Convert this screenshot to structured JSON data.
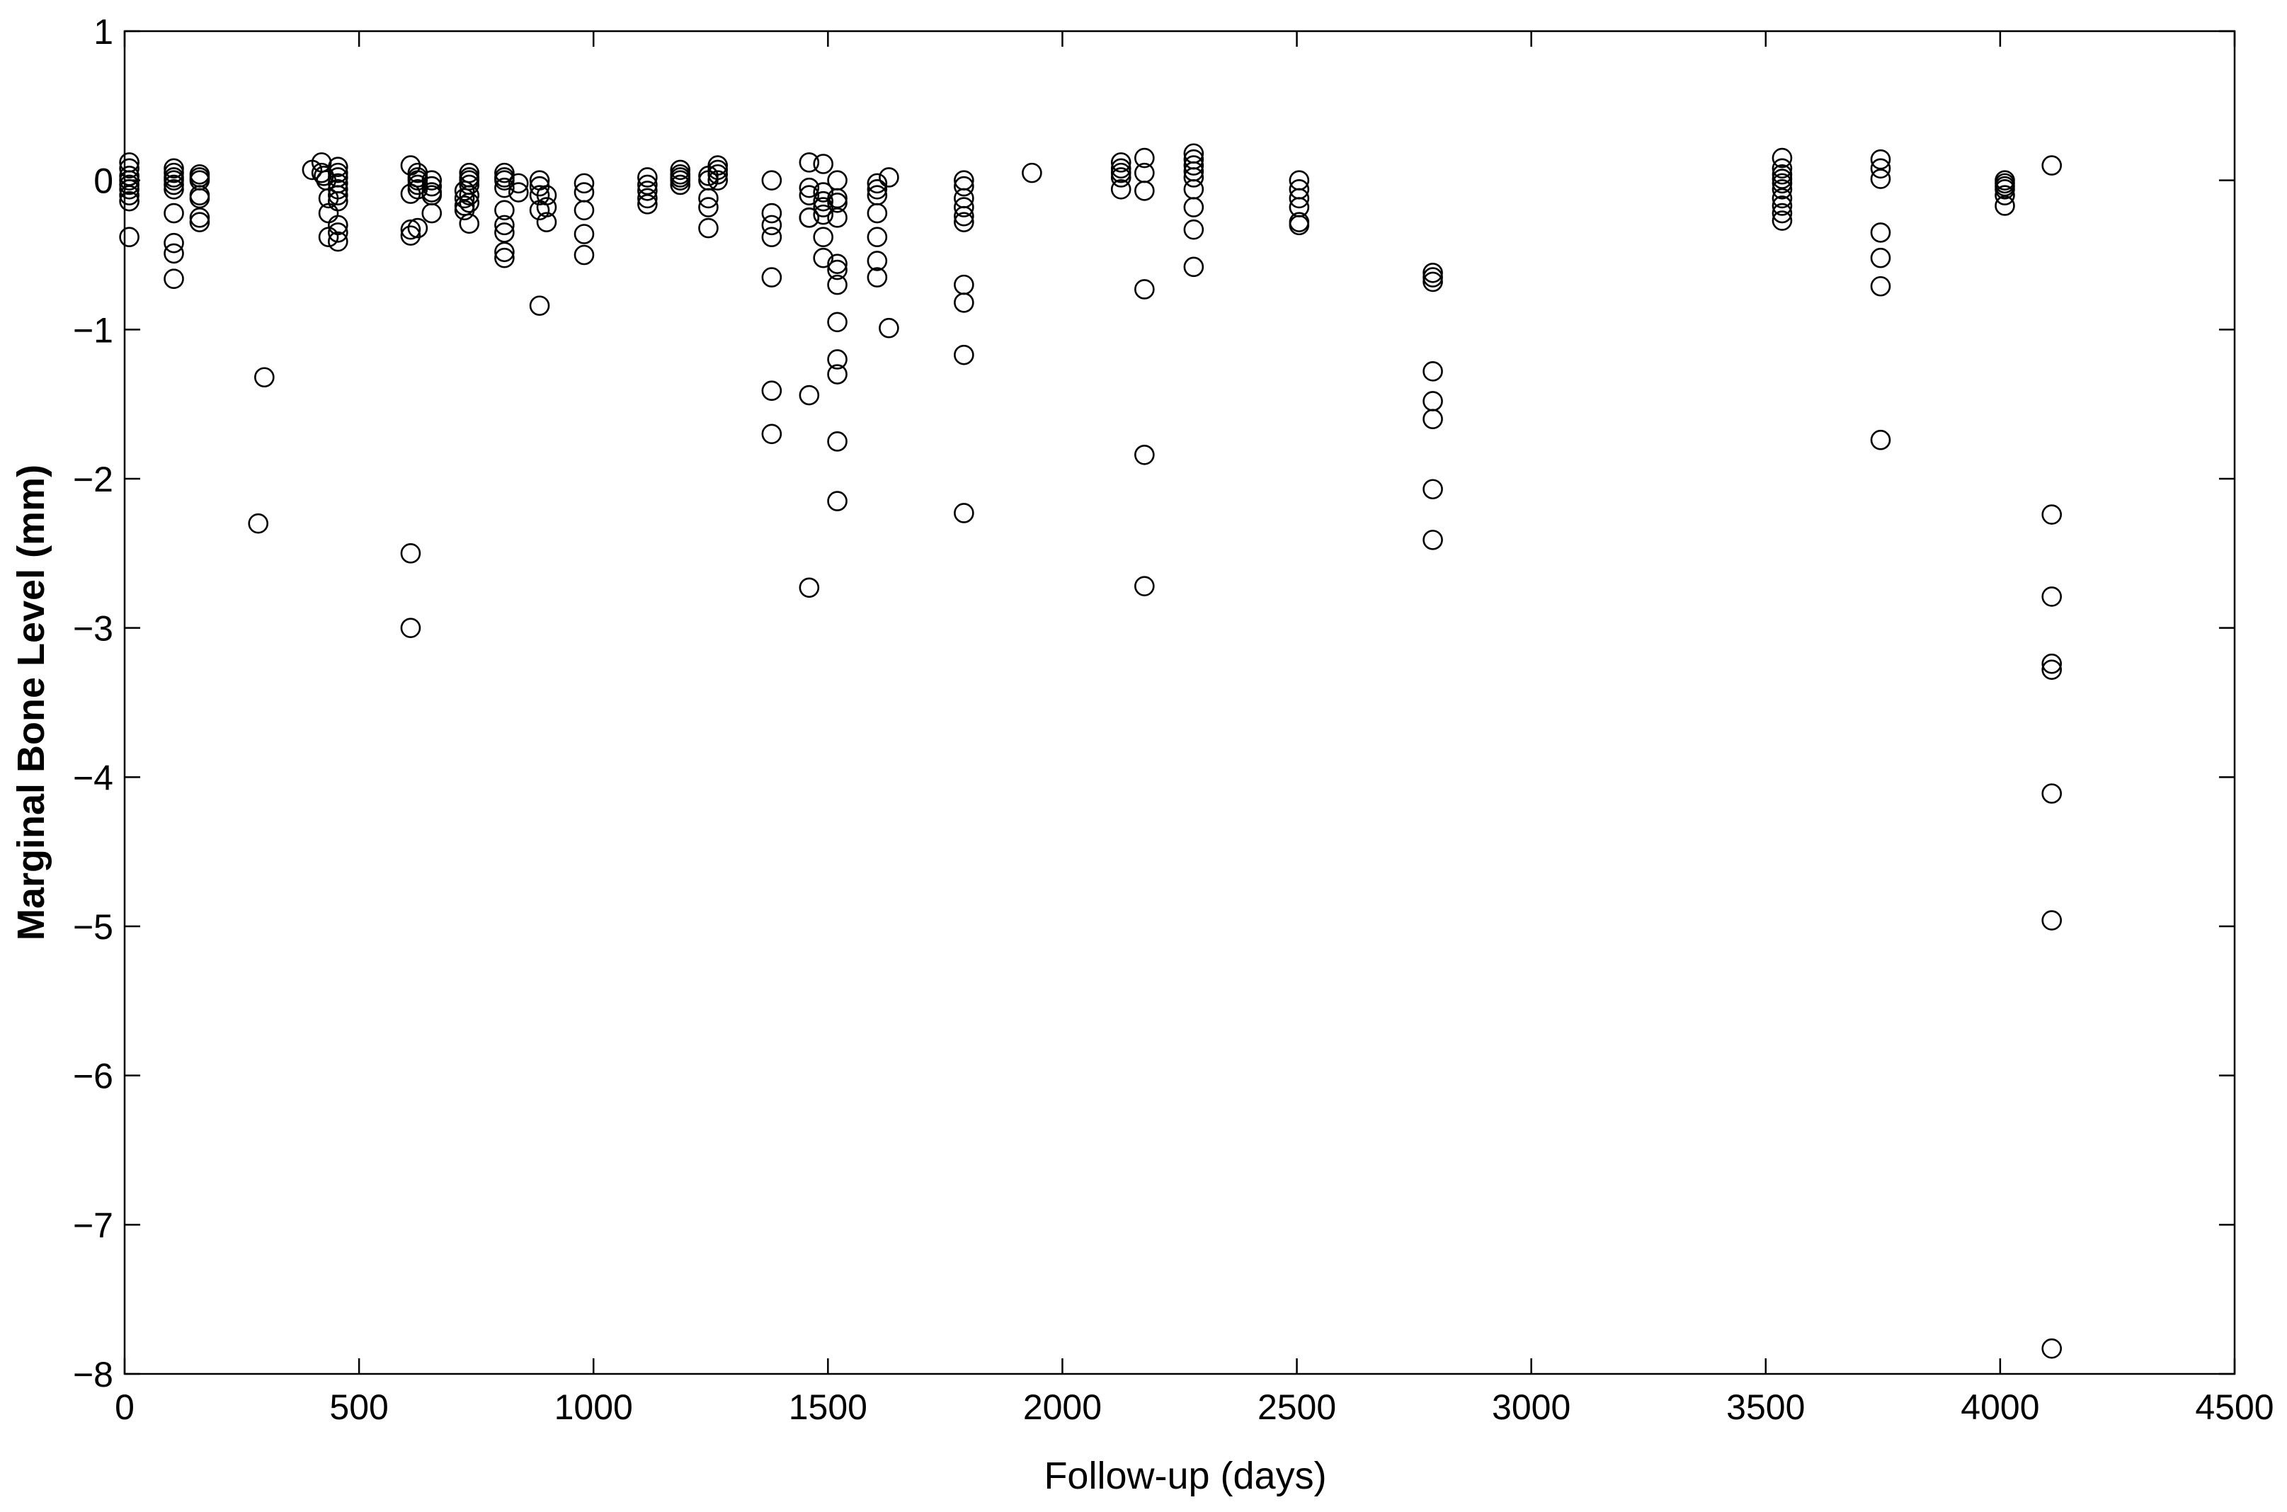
{
  "chart_data": {
    "type": "scatter",
    "title": "",
    "xlabel": "Follow-up (days)",
    "ylabel": "Marginal Bone Level (mm)",
    "xlim": [
      0,
      4500
    ],
    "ylim": [
      -8,
      1
    ],
    "xticks": [
      0,
      500,
      1000,
      1500,
      2000,
      2500,
      3000,
      3500,
      4000,
      4500
    ],
    "yticks": [
      1,
      0,
      -1,
      -2,
      -3,
      -4,
      -5,
      -6,
      -7,
      -8
    ],
    "xtick_labels": [
      "0",
      "500",
      "1000",
      "1500",
      "2000",
      "2500",
      "3000",
      "3500",
      "4000",
      "4500"
    ],
    "ytick_labels": [
      "1",
      "0",
      "−1",
      "−2",
      "−3",
      "−4",
      "−5",
      "−6",
      "−7",
      "−8"
    ],
    "grid": false,
    "marker": "open-circle",
    "color": "#000000",
    "points": [
      [
        10,
        0.12
      ],
      [
        10,
        0.08
      ],
      [
        10,
        0.03
      ],
      [
        10,
        0
      ],
      [
        10,
        -0.03
      ],
      [
        10,
        -0.06
      ],
      [
        10,
        -0.1
      ],
      [
        10,
        -0.14
      ],
      [
        10,
        -0.38
      ],
      [
        105,
        0.08
      ],
      [
        105,
        0.05
      ],
      [
        105,
        0.02
      ],
      [
        105,
        0
      ],
      [
        105,
        -0.03
      ],
      [
        105,
        -0.06
      ],
      [
        105,
        -0.22
      ],
      [
        105,
        -0.42
      ],
      [
        105,
        -0.49
      ],
      [
        105,
        -0.66
      ],
      [
        160,
        0.04
      ],
      [
        160,
        0.02
      ],
      [
        160,
        0
      ],
      [
        160,
        -0.1
      ],
      [
        160,
        -0.12
      ],
      [
        160,
        -0.25
      ],
      [
        160,
        -0.28
      ],
      [
        285,
        -2.3
      ],
      [
        298,
        -1.32
      ],
      [
        400,
        0.07
      ],
      [
        420,
        0.12
      ],
      [
        420,
        0.05
      ],
      [
        425,
        0.03
      ],
      [
        430,
        0
      ],
      [
        435,
        -0.12
      ],
      [
        435,
        -0.22
      ],
      [
        435,
        -0.38
      ],
      [
        455,
        0.09
      ],
      [
        455,
        0.05
      ],
      [
        455,
        0.02
      ],
      [
        455,
        -0.02
      ],
      [
        455,
        -0.06
      ],
      [
        455,
        -0.1
      ],
      [
        455,
        -0.14
      ],
      [
        455,
        -0.3
      ],
      [
        455,
        -0.35
      ],
      [
        455,
        -0.41
      ],
      [
        610,
        0.1
      ],
      [
        610,
        -0.09
      ],
      [
        610,
        -0.33
      ],
      [
        610,
        -0.37
      ],
      [
        610,
        -2.5
      ],
      [
        610,
        -3
      ],
      [
        625,
        0.05
      ],
      [
        625,
        0.02
      ],
      [
        625,
        0
      ],
      [
        625,
        -0.03
      ],
      [
        625,
        -0.06
      ],
      [
        625,
        -0.32
      ],
      [
        655,
        0
      ],
      [
        655,
        -0.04
      ],
      [
        655,
        -0.08
      ],
      [
        655,
        -0.1
      ],
      [
        655,
        -0.22
      ],
      [
        725,
        -0.07
      ],
      [
        725,
        -0.12
      ],
      [
        725,
        -0.17
      ],
      [
        725,
        -0.2
      ],
      [
        735,
        0.05
      ],
      [
        735,
        0.02
      ],
      [
        735,
        0
      ],
      [
        735,
        -0.03
      ],
      [
        735,
        -0.1
      ],
      [
        735,
        -0.15
      ],
      [
        735,
        -0.29
      ],
      [
        810,
        0.05
      ],
      [
        810,
        0.02
      ],
      [
        810,
        0
      ],
      [
        810,
        -0.05
      ],
      [
        810,
        -0.2
      ],
      [
        810,
        -0.3
      ],
      [
        810,
        -0.35
      ],
      [
        810,
        -0.48
      ],
      [
        810,
        -0.52
      ],
      [
        840,
        -0.02
      ],
      [
        840,
        -0.08
      ],
      [
        885,
        0
      ],
      [
        885,
        -0.04
      ],
      [
        885,
        -0.1
      ],
      [
        885,
        -0.2
      ],
      [
        885,
        -0.84
      ],
      [
        900,
        -0.1
      ],
      [
        900,
        -0.18
      ],
      [
        900,
        -0.28
      ],
      [
        980,
        -0.02
      ],
      [
        980,
        -0.08
      ],
      [
        980,
        -0.2
      ],
      [
        980,
        -0.36
      ],
      [
        980,
        -0.5
      ],
      [
        1115,
        0.02
      ],
      [
        1115,
        -0.03
      ],
      [
        1115,
        -0.07
      ],
      [
        1115,
        -0.12
      ],
      [
        1115,
        -0.16
      ],
      [
        1185,
        0.07
      ],
      [
        1185,
        0.04
      ],
      [
        1185,
        0.02
      ],
      [
        1185,
        0
      ],
      [
        1185,
        -0.03
      ],
      [
        1245,
        0.03
      ],
      [
        1245,
        0
      ],
      [
        1245,
        -0.12
      ],
      [
        1245,
        -0.18
      ],
      [
        1245,
        -0.32
      ],
      [
        1265,
        0.1
      ],
      [
        1265,
        0.07
      ],
      [
        1265,
        0.04
      ],
      [
        1265,
        0
      ],
      [
        1380,
        0
      ],
      [
        1380,
        -0.22
      ],
      [
        1380,
        -0.3
      ],
      [
        1380,
        -0.38
      ],
      [
        1380,
        -0.65
      ],
      [
        1380,
        -1.41
      ],
      [
        1380,
        -1.7
      ],
      [
        1460,
        0.12
      ],
      [
        1460,
        -0.05
      ],
      [
        1460,
        -0.1
      ],
      [
        1460,
        -0.25
      ],
      [
        1460,
        -0.25
      ],
      [
        1460,
        -1.44
      ],
      [
        1460,
        -2.73
      ],
      [
        1490,
        0.11
      ],
      [
        1490,
        -0.08
      ],
      [
        1490,
        -0.14
      ],
      [
        1490,
        -0.18
      ],
      [
        1490,
        -0.23
      ],
      [
        1490,
        -0.38
      ],
      [
        1490,
        -0.52
      ],
      [
        1520,
        0
      ],
      [
        1520,
        -0.12
      ],
      [
        1520,
        -0.15
      ],
      [
        1520,
        -0.25
      ],
      [
        1520,
        -0.56
      ],
      [
        1520,
        -0.6
      ],
      [
        1520,
        -0.7
      ],
      [
        1520,
        -0.95
      ],
      [
        1520,
        -1.2
      ],
      [
        1520,
        -1.3
      ],
      [
        1520,
        -1.75
      ],
      [
        1520,
        -2.15
      ],
      [
        1605,
        -0.02
      ],
      [
        1605,
        -0.06
      ],
      [
        1605,
        -0.1
      ],
      [
        1605,
        -0.22
      ],
      [
        1605,
        -0.38
      ],
      [
        1605,
        -0.54
      ],
      [
        1605,
        -0.65
      ],
      [
        1630,
        0.02
      ],
      [
        1630,
        -0.99
      ],
      [
        1790,
        0
      ],
      [
        1790,
        -0.04
      ],
      [
        1790,
        -0.12
      ],
      [
        1790,
        -0.18
      ],
      [
        1790,
        -0.24
      ],
      [
        1790,
        -0.28
      ],
      [
        1790,
        -0.7
      ],
      [
        1790,
        -0.82
      ],
      [
        1790,
        -1.17
      ],
      [
        1790,
        -2.23
      ],
      [
        1935,
        0.05
      ],
      [
        2125,
        0.12
      ],
      [
        2125,
        0.08
      ],
      [
        2125,
        0.05
      ],
      [
        2125,
        0.02
      ],
      [
        2125,
        -0.06
      ],
      [
        2175,
        0.15
      ],
      [
        2175,
        0.05
      ],
      [
        2175,
        -0.07
      ],
      [
        2175,
        -0.73
      ],
      [
        2175,
        -1.84
      ],
      [
        2175,
        -2.72
      ],
      [
        2280,
        0.18
      ],
      [
        2280,
        0.14
      ],
      [
        2280,
        0.1
      ],
      [
        2280,
        0.06
      ],
      [
        2280,
        0.02
      ],
      [
        2280,
        -0.06
      ],
      [
        2280,
        -0.18
      ],
      [
        2280,
        -0.33
      ],
      [
        2280,
        -0.58
      ],
      [
        2505,
        0
      ],
      [
        2505,
        -0.06
      ],
      [
        2505,
        -0.12
      ],
      [
        2505,
        -0.18
      ],
      [
        2505,
        -0.28
      ],
      [
        2505,
        -0.3
      ],
      [
        2790,
        -0.62
      ],
      [
        2790,
        -0.65
      ],
      [
        2790,
        -0.68
      ],
      [
        2790,
        -1.28
      ],
      [
        2790,
        -1.48
      ],
      [
        2790,
        -1.6
      ],
      [
        2790,
        -2.07
      ],
      [
        2790,
        -2.41
      ],
      [
        3535,
        0.15
      ],
      [
        3535,
        0.08
      ],
      [
        3535,
        0.04
      ],
      [
        3535,
        0.01
      ],
      [
        3535,
        -0.02
      ],
      [
        3535,
        -0.06
      ],
      [
        3535,
        -0.12
      ],
      [
        3535,
        -0.17
      ],
      [
        3535,
        -0.22
      ],
      [
        3535,
        -0.27
      ],
      [
        3745,
        0.14
      ],
      [
        3745,
        0.08
      ],
      [
        3745,
        0.01
      ],
      [
        3745,
        -0.35
      ],
      [
        3745,
        -0.52
      ],
      [
        3745,
        -0.71
      ],
      [
        3745,
        -1.74
      ],
      [
        4010,
        0
      ],
      [
        4010,
        -0.02
      ],
      [
        4010,
        -0.04
      ],
      [
        4010,
        -0.06
      ],
      [
        4010,
        -0.1
      ],
      [
        4010,
        -0.17
      ],
      [
        4110,
        0.1
      ],
      [
        4110,
        -2.24
      ],
      [
        4110,
        -2.79
      ],
      [
        4110,
        -3.24
      ],
      [
        4110,
        -3.28
      ],
      [
        4110,
        -4.11
      ],
      [
        4110,
        -4.96
      ],
      [
        4110,
        -7.83
      ]
    ]
  }
}
